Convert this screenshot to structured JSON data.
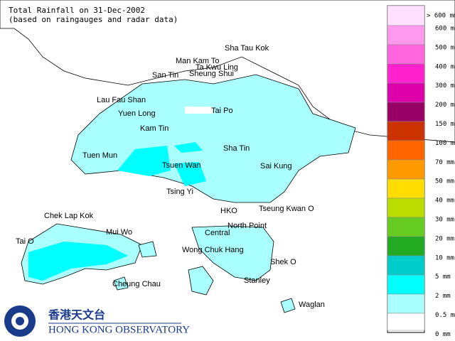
{
  "header": {
    "title": "Total Rainfall on 31-Dec-2002",
    "subtitle": "(based on raingauges and radar data)"
  },
  "places": [
    "Sha Tau Kok",
    "Man Kam To",
    "Ta Kwu Ling",
    "San Tin",
    "Sheung Shui",
    "Lau Fau Shan",
    "Yuen Long",
    "Tai Po",
    "Kam Tin",
    "Tuen Mun",
    "Sha Tin",
    "Tsuen Wan",
    "Sai Kung",
    "Tsing Yi",
    "HKO",
    "Tseung Kwan O",
    "Chek Lap Kok",
    "Mui Wo",
    "North Point",
    "Central",
    "Tai O",
    "Wong Chuk Hang",
    "Shek O",
    "Cheung Chau",
    "Stanley",
    "Waglan"
  ],
  "legend": {
    "labels": [
      "> 600 mm",
      "600 mm",
      "500 mm",
      "400 mm",
      "300 mm",
      "200 mm",
      "150 mm",
      "100 mm",
      "70 mm",
      "50 mm",
      "40 mm",
      "30 mm",
      "20 mm",
      "10 mm",
      "5 mm",
      "2 mm",
      "0.5 mm",
      "0 mm"
    ],
    "colors": [
      "#ffe0ff",
      "#ff99ee",
      "#ff66dd",
      "#ff22cc",
      "#dd00aa",
      "#990066",
      "#cc3300",
      "#ff6600",
      "#ff9900",
      "#ffdd00",
      "#bbdd00",
      "#66cc22",
      "#22aa22",
      "#00cccc",
      "#00ffff",
      "#aaffff",
      "#ffffff"
    ]
  },
  "logo": {
    "chinese": "香港天文台",
    "english": "HONG KONG OBSERVATORY"
  }
}
